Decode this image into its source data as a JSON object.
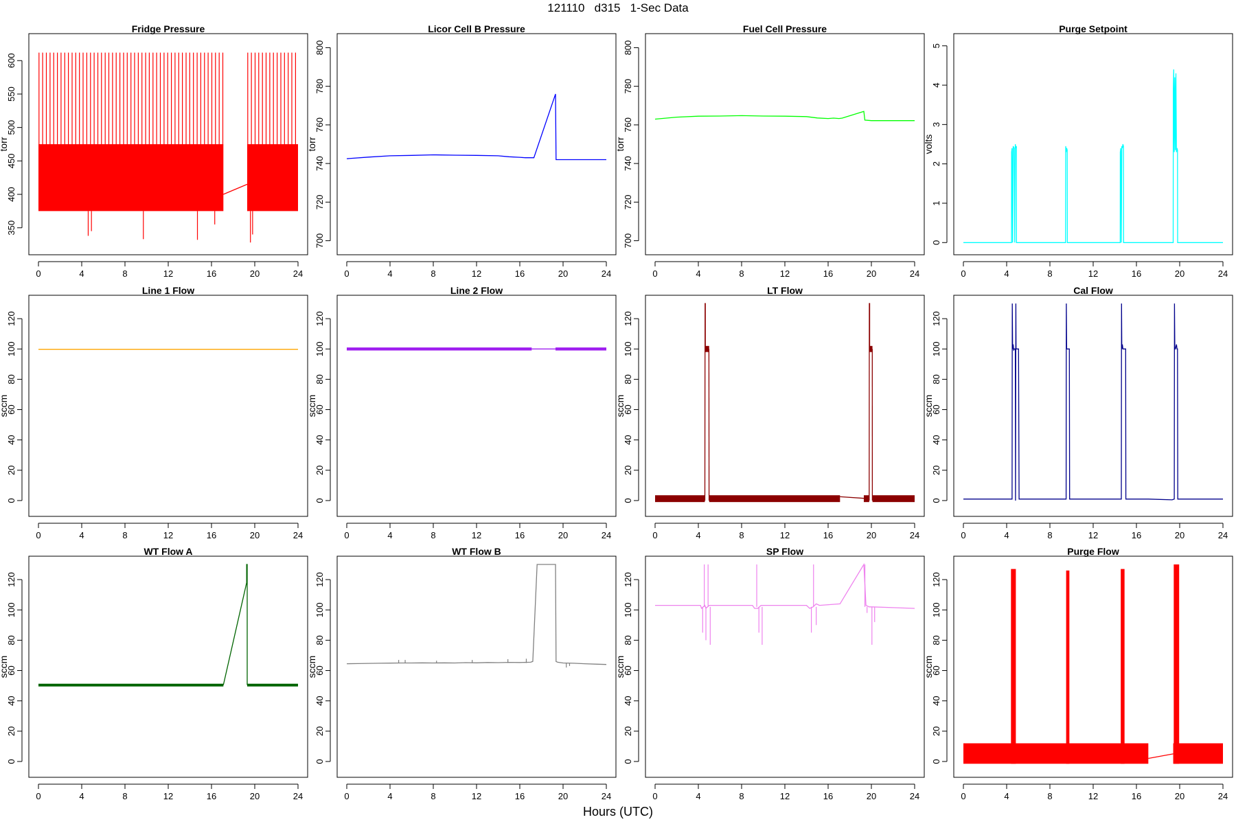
{
  "figure": {
    "title": "121110   d315   1-Sec Data",
    "xlabel": "Hours (UTC)"
  },
  "chart_data": [
    {
      "type": "line",
      "title": "Fridge Pressure",
      "ylabel": "torr",
      "color": "#ff0000",
      "xlim": [
        0,
        24
      ],
      "xticks": [
        0,
        4,
        8,
        12,
        16,
        20,
        24
      ],
      "ylim": [
        322,
        628
      ],
      "yticks": [
        350,
        400,
        450,
        500,
        550,
        600
      ],
      "series": [
        {
          "kind": "band",
          "x": [
            0,
            17.1
          ],
          "low": 375,
          "high": 475
        },
        {
          "kind": "band",
          "x": [
            19.3,
            24
          ],
          "low": 375,
          "high": 475
        },
        {
          "kind": "spikes",
          "x_start": 0.05,
          "x_end": 17.05,
          "step": 0.34,
          "base": 475,
          "peak": 612
        },
        {
          "kind": "spikes",
          "x_start": 19.35,
          "x_end": 24.0,
          "step": 0.34,
          "base": 475,
          "peak": 612
        },
        {
          "kind": "line",
          "x": [
            17.1,
            19.3
          ],
          "y": [
            400,
            415
          ]
        },
        {
          "kind": "dips",
          "points": [
            [
              4.6,
              338
            ],
            [
              4.9,
              345
            ],
            [
              9.7,
              333
            ],
            [
              14.7,
              332
            ],
            [
              16.3,
              355
            ],
            [
              19.6,
              328
            ],
            [
              19.8,
              340
            ]
          ]
        }
      ]
    },
    {
      "type": "line",
      "title": "Licor Cell B Pressure",
      "ylabel": "torr",
      "color": "#0000ff",
      "xlim": [
        0,
        24
      ],
      "xticks": [
        0,
        4,
        8,
        12,
        16,
        20,
        24
      ],
      "ylim": [
        697,
        803
      ],
      "yticks": [
        700,
        720,
        740,
        760,
        780,
        800
      ],
      "series": [
        {
          "kind": "line",
          "x": [
            0,
            2,
            4,
            6,
            8,
            10,
            12,
            14,
            15,
            16,
            16.5,
            17.0,
            17.3,
            19.3,
            19.35,
            20,
            22,
            24
          ],
          "y": [
            742.5,
            743.3,
            744,
            744.2,
            744.5,
            744.3,
            744.2,
            744,
            743.5,
            743.2,
            743,
            743,
            743,
            776,
            742,
            742,
            742,
            742
          ]
        }
      ]
    },
    {
      "type": "line",
      "title": "Fuel Cell Pressure",
      "ylabel": "torr",
      "color": "#00ff00",
      "xlim": [
        0,
        24
      ],
      "xticks": [
        0,
        4,
        8,
        12,
        16,
        20,
        24
      ],
      "ylim": [
        697,
        803
      ],
      "yticks": [
        700,
        720,
        740,
        760,
        780,
        800
      ],
      "series": [
        {
          "kind": "line",
          "x": [
            0,
            2,
            4,
            6,
            8,
            10,
            12,
            14,
            15,
            16,
            16.5,
            17.0,
            17.3,
            19.3,
            19.4,
            20,
            22,
            24
          ],
          "y": [
            763,
            764,
            764.5,
            764.6,
            764.8,
            764.6,
            764.5,
            764.3,
            763.6,
            763.3,
            763.5,
            763.3,
            763.5,
            767,
            762.5,
            762.2,
            762.2,
            762.2
          ]
        }
      ]
    },
    {
      "type": "line",
      "title": "Purge Setpoint",
      "ylabel": "volts",
      "color": "#00ffff",
      "xlim": [
        0,
        24
      ],
      "xticks": [
        0,
        4,
        8,
        12,
        16,
        20,
        24
      ],
      "ylim": [
        -0.1,
        5.1
      ],
      "yticks": [
        0,
        1,
        2,
        3,
        4,
        5
      ],
      "series": [
        {
          "kind": "line",
          "x": [
            0,
            4.45,
            4.46,
            4.5,
            4.55,
            4.6,
            4.7,
            4.75,
            4.8,
            4.85,
            4.9,
            4.91,
            9.45,
            9.46,
            9.5,
            9.55,
            9.6,
            9.61,
            14.5,
            14.51,
            14.55,
            14.6,
            14.65,
            14.7,
            14.75,
            14.8,
            14.81,
            19.4,
            19.41,
            19.45,
            19.5,
            19.55,
            19.6,
            19.65,
            19.7,
            19.75,
            19.8,
            19.81,
            24
          ],
          "y": [
            0,
            0,
            2.3,
            2.4,
            0,
            2.45,
            2.4,
            0,
            2.5,
            2.4,
            2.45,
            0,
            0,
            2.45,
            2.3,
            2.4,
            2.35,
            0,
            0,
            2.3,
            2.4,
            0,
            2.45,
            2.4,
            2.5,
            2.45,
            0,
            0,
            3.9,
            4.4,
            2.3,
            4.2,
            2.35,
            4.3,
            2.3,
            2.4,
            2.35,
            0,
            0
          ]
        }
      ]
    },
    {
      "type": "line",
      "title": "Line 1 Flow",
      "ylabel": "sccm",
      "color": "#ffa500",
      "xlim": [
        0,
        24
      ],
      "xticks": [
        0,
        4,
        8,
        12,
        16,
        20,
        24
      ],
      "ylim": [
        -5,
        130
      ],
      "yticks": [
        0,
        20,
        40,
        60,
        80,
        100,
        120
      ],
      "series": [
        {
          "kind": "line",
          "x": [
            0,
            24
          ],
          "y": [
            99.8,
            99.8
          ]
        }
      ]
    },
    {
      "type": "line",
      "title": "Line 2 Flow",
      "ylabel": "sccm",
      "color": "#a020f0",
      "xlim": [
        0,
        24
      ],
      "xticks": [
        0,
        4,
        8,
        12,
        16,
        20,
        24
      ],
      "ylim": [
        -5,
        130
      ],
      "yticks": [
        0,
        20,
        40,
        60,
        80,
        100,
        120
      ],
      "series": [
        {
          "kind": "band",
          "x": [
            0,
            17.1
          ],
          "low": 99,
          "high": 101
        },
        {
          "kind": "band",
          "x": [
            19.3,
            24
          ],
          "low": 99,
          "high": 101
        },
        {
          "kind": "line",
          "x": [
            17.1,
            19.3
          ],
          "y": [
            100,
            100
          ]
        }
      ]
    },
    {
      "type": "line",
      "title": "LT Flow",
      "ylabel": "sccm",
      "color": "#8b0000",
      "xlim": [
        0,
        24
      ],
      "xticks": [
        0,
        4,
        8,
        12,
        16,
        20,
        24
      ],
      "ylim": [
        -5,
        130
      ],
      "yticks": [
        0,
        20,
        40,
        60,
        80,
        100,
        120
      ],
      "series": [
        {
          "kind": "band",
          "x": [
            0,
            4.6
          ],
          "low": -1,
          "high": 3.5
        },
        {
          "kind": "band",
          "x": [
            5.0,
            17.1
          ],
          "low": -1,
          "high": 3.5
        },
        {
          "kind": "band",
          "x": [
            19.3,
            19.8
          ],
          "low": -1,
          "high": 3.5
        },
        {
          "kind": "band",
          "x": [
            20.1,
            24
          ],
          "low": -1,
          "high": 3.5
        },
        {
          "kind": "band",
          "x": [
            4.6,
            5.0
          ],
          "low": 98,
          "high": 102
        },
        {
          "kind": "band",
          "x": [
            19.8,
            20.1
          ],
          "low": 98,
          "high": 102
        },
        {
          "kind": "line",
          "x": [
            17.1,
            19.3
          ],
          "y": [
            2.5,
            1.5
          ]
        },
        {
          "kind": "line",
          "x": [
            4.6,
            4.62,
            4.65,
            4.65
          ],
          "y": [
            0,
            130,
            130,
            100
          ]
        },
        {
          "kind": "line",
          "x": [
            4.98,
            4.99
          ],
          "y": [
            100,
            0
          ]
        },
        {
          "kind": "line",
          "x": [
            19.8,
            19.81,
            19.84,
            19.84
          ],
          "y": [
            0,
            130,
            130,
            100
          ]
        },
        {
          "kind": "line",
          "x": [
            20.08,
            20.09
          ],
          "y": [
            100,
            0
          ]
        }
      ]
    },
    {
      "type": "line",
      "title": "Cal Flow",
      "ylabel": "sccm",
      "color": "#00008b",
      "xlim": [
        0,
        24
      ],
      "xticks": [
        0,
        4,
        8,
        12,
        16,
        20,
        24
      ],
      "ylim": [
        -5,
        130
      ],
      "yticks": [
        0,
        20,
        40,
        60,
        80,
        100,
        120
      ],
      "series": [
        {
          "kind": "line",
          "x": [
            0,
            4.5,
            4.52,
            4.55,
            4.6,
            4.65,
            4.7,
            4.75,
            4.8,
            4.82,
            4.85,
            4.87,
            5.1,
            5.15,
            9.5,
            9.52,
            9.55,
            9.6,
            9.8,
            9.82,
            14.6,
            14.62,
            14.65,
            14.7,
            14.75,
            15.0,
            15.02,
            17.1,
            19.3,
            19.5,
            19.52,
            19.55,
            19.6,
            19.7,
            19.75,
            19.8,
            19.82,
            24
          ],
          "y": [
            1,
            1,
            130,
            100,
            103,
            99,
            100,
            100,
            100,
            0,
            130,
            100,
            100,
            1,
            1,
            130,
            100,
            100,
            100,
            1,
            1,
            130,
            100,
            103,
            100,
            100,
            1,
            1,
            0.5,
            1,
            130,
            100,
            100,
            103,
            100,
            100,
            1,
            1
          ]
        }
      ]
    },
    {
      "type": "line",
      "title": "WT Flow A",
      "ylabel": "sccm",
      "color": "#006400",
      "xlim": [
        0,
        24
      ],
      "xticks": [
        0,
        4,
        8,
        12,
        16,
        20,
        24
      ],
      "ylim": [
        -5,
        130
      ],
      "yticks": [
        0,
        20,
        40,
        60,
        80,
        100,
        120
      ],
      "series": [
        {
          "kind": "band",
          "x": [
            0,
            17.1
          ],
          "low": 49.5,
          "high": 51.3
        },
        {
          "kind": "band",
          "x": [
            19.3,
            24
          ],
          "low": 49.5,
          "high": 51.3
        },
        {
          "kind": "line",
          "x": [
            17.1,
            19.25,
            19.25,
            19.3,
            19.3
          ],
          "y": [
            50.5,
            118,
            130,
            130,
            50.5
          ]
        }
      ]
    },
    {
      "type": "line",
      "title": "WT Flow B",
      "ylabel": "sccm",
      "color": "#808080",
      "xlim": [
        0,
        24
      ],
      "xticks": [
        0,
        4,
        8,
        12,
        16,
        20,
        24
      ],
      "ylim": [
        -5,
        130
      ],
      "yticks": [
        0,
        20,
        40,
        60,
        80,
        100,
        120
      ],
      "series": [
        {
          "kind": "line",
          "x": [
            0,
            1,
            2,
            3,
            4,
            5,
            6,
            7,
            8,
            9,
            10,
            11,
            12,
            13,
            14,
            15,
            16,
            17.0,
            17.2,
            17.6,
            19.3,
            19.35,
            19.5,
            20,
            21,
            22,
            23,
            24
          ],
          "y": [
            64.5,
            64.6,
            64.7,
            64.8,
            64.9,
            65.0,
            65.0,
            65.1,
            65.0,
            65.1,
            65.0,
            65.2,
            65.1,
            65.3,
            65.2,
            65.4,
            65.3,
            65.5,
            66,
            130,
            130,
            66,
            65.5,
            65,
            64.8,
            64.5,
            64.2,
            64
          ]
        },
        {
          "kind": "dips",
          "points": [
            [
              4.8,
              67
            ],
            [
              5.4,
              67
            ],
            [
              8.3,
              66.5
            ],
            [
              11.6,
              67
            ],
            [
              14.9,
              67.5
            ],
            [
              16.6,
              67.8
            ],
            [
              20.3,
              62
            ],
            [
              20.6,
              63
            ]
          ]
        }
      ]
    },
    {
      "type": "line",
      "title": "SP Flow",
      "ylabel": "sccm",
      "color": "#ee82ee",
      "xlim": [
        0,
        24
      ],
      "xticks": [
        0,
        4,
        8,
        12,
        16,
        20,
        24
      ],
      "ylim": [
        -5,
        130
      ],
      "yticks": [
        0,
        20,
        40,
        60,
        80,
        100,
        120
      ],
      "series": [
        {
          "kind": "line",
          "x": [
            0,
            2,
            4.2,
            4.3,
            4.6,
            4.7,
            5.0,
            5.5,
            7,
            9,
            9.2,
            9.5,
            9.8,
            10,
            12,
            14,
            14.3,
            14.6,
            14.9,
            15.2,
            17.1,
            19.3,
            19.5,
            19.8,
            20,
            22,
            24
          ],
          "y": [
            103,
            103,
            103,
            101,
            103,
            101,
            103,
            103,
            103,
            103,
            101,
            101,
            103,
            103,
            103,
            103,
            101,
            102,
            104,
            103,
            104,
            130,
            103,
            102,
            102,
            101.5,
            101
          ]
        },
        {
          "kind": "dips",
          "points": [
            [
              4.4,
              85
            ],
            [
              4.55,
              130
            ],
            [
              4.7,
              80
            ],
            [
              4.9,
              130
            ],
            [
              5.1,
              77
            ],
            [
              9.4,
              130
            ],
            [
              9.6,
              85
            ],
            [
              9.9,
              77
            ],
            [
              14.45,
              85
            ],
            [
              14.65,
              130
            ],
            [
              14.9,
              90
            ],
            [
              19.4,
              130
            ],
            [
              19.6,
              98
            ],
            [
              20.05,
              77
            ],
            [
              20.3,
              92
            ]
          ]
        }
      ]
    },
    {
      "type": "line",
      "title": "Purge Flow",
      "ylabel": "sccm",
      "color": "#ff0000",
      "xlim": [
        0,
        24
      ],
      "xticks": [
        0,
        4,
        8,
        12,
        16,
        20,
        24
      ],
      "ylim": [
        -5,
        130
      ],
      "yticks": [
        0,
        20,
        40,
        60,
        80,
        100,
        120
      ],
      "series": [
        {
          "kind": "band",
          "x": [
            0,
            17.1
          ],
          "low": -1.5,
          "high": 12
        },
        {
          "kind": "band",
          "x": [
            19.4,
            24
          ],
          "low": -1.5,
          "high": 12
        },
        {
          "kind": "line",
          "x": [
            17.1,
            19.4
          ],
          "y": [
            2,
            5
          ]
        },
        {
          "kind": "band",
          "x": [
            4.4,
            4.85
          ],
          "low": -1.5,
          "high": 127
        },
        {
          "kind": "band",
          "x": [
            9.5,
            9.8
          ],
          "low": -1.5,
          "high": 126
        },
        {
          "kind": "band",
          "x": [
            14.55,
            14.9
          ],
          "low": -1.5,
          "high": 127
        },
        {
          "kind": "band",
          "x": [
            19.45,
            19.95
          ],
          "low": -1.5,
          "high": 130
        }
      ]
    }
  ]
}
